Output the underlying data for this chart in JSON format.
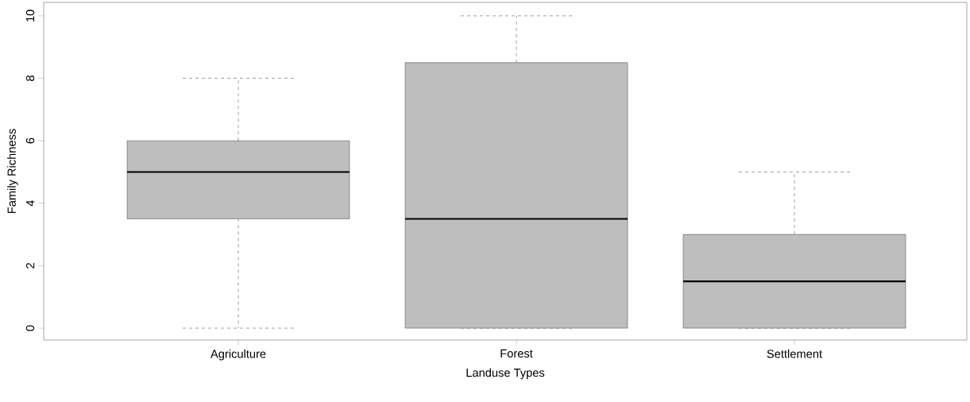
{
  "chart_data": {
    "type": "box",
    "xlabel": "Landuse Types",
    "ylabel": "Family Richness",
    "categories": [
      "Agriculture",
      "Forest",
      "Settlement"
    ],
    "color": "#bebebe",
    "boxes": [
      {
        "low": 0,
        "q1": 3.5,
        "median": 5,
        "q3": 6,
        "high": 8
      },
      {
        "low": 0,
        "q1": 0,
        "median": 3.5,
        "q3": 8.5,
        "high": 10
      },
      {
        "low": 0,
        "q1": 0,
        "median": 1.5,
        "q3": 3,
        "high": 5
      }
    ],
    "ylim": [
      -0.38,
      10.43
    ],
    "yticks": [
      0,
      2,
      4,
      6,
      8,
      10
    ]
  }
}
